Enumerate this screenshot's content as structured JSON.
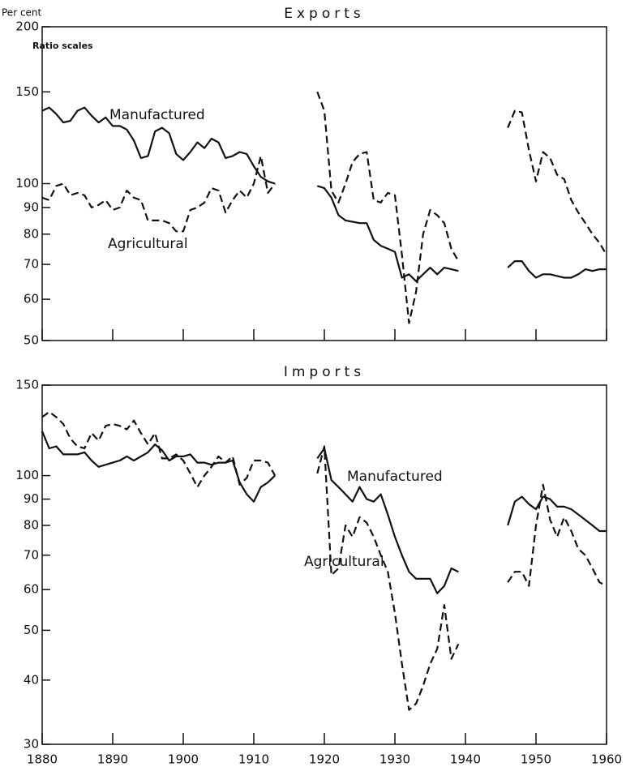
{
  "chart_data": [
    {
      "type": "line",
      "title": "Exports",
      "ylabel": "Per cent",
      "annotations": [
        "Ratio scales",
        "Manufactured",
        "Agricultural"
      ],
      "log": true,
      "xlim": [
        1880,
        1960
      ],
      "xticks": [
        1880,
        1890,
        1900,
        1910,
        1920,
        1930,
        1940,
        1950,
        1960
      ],
      "ylim": [
        50,
        200
      ],
      "yticks": [
        50,
        60,
        70,
        80,
        90,
        100,
        150,
        200
      ],
      "x": [
        1880,
        1881,
        1882,
        1883,
        1884,
        1885,
        1886,
        1887,
        1888,
        1889,
        1890,
        1891,
        1892,
        1893,
        1894,
        1895,
        1896,
        1897,
        1898,
        1899,
        1900,
        1901,
        1902,
        1903,
        1904,
        1905,
        1906,
        1907,
        1908,
        1909,
        1910,
        1911,
        1912,
        1913,
        1914,
        1915,
        1916,
        1917,
        1918,
        1919,
        1920,
        1921,
        1922,
        1923,
        1924,
        1925,
        1926,
        1927,
        1928,
        1929,
        1930,
        1931,
        1932,
        1933,
        1934,
        1935,
        1936,
        1937,
        1938,
        1939,
        1940,
        1941,
        1942,
        1943,
        1944,
        1945,
        1946,
        1947,
        1948,
        1949,
        1950,
        1951,
        1952,
        1953,
        1954,
        1955,
        1956,
        1957,
        1958,
        1959,
        1960
      ],
      "series": [
        {
          "name": "Manufactured",
          "color": "#111111",
          "dash": false,
          "values": [
            138,
            140,
            136,
            131,
            132,
            138,
            140,
            135,
            131,
            134,
            129,
            129,
            127,
            121,
            112,
            113,
            126,
            128,
            125,
            114,
            111,
            115,
            120,
            117,
            122,
            120,
            112,
            113,
            115,
            114,
            108,
            103,
            101,
            100,
            null,
            null,
            null,
            null,
            null,
            99,
            98,
            94,
            87,
            85,
            84.5,
            84,
            84,
            78,
            76,
            75,
            74,
            66,
            67,
            65,
            67,
            69,
            67,
            69,
            68.5,
            68,
            null,
            null,
            null,
            null,
            null,
            null,
            69,
            71,
            71,
            68,
            66,
            67,
            67,
            66.5,
            66,
            66,
            67,
            68.5,
            68,
            68.5,
            68.5
          ]
        },
        {
          "name": "Agricultural",
          "color": "#111111",
          "dash": true,
          "values": [
            94,
            93,
            99,
            100,
            95,
            96,
            95,
            90,
            91,
            93,
            89,
            90,
            97,
            94,
            93,
            85,
            85,
            85,
            84,
            81,
            81,
            89,
            90,
            92,
            98,
            97,
            88,
            93,
            97,
            94,
            100,
            113,
            96,
            100,
            null,
            null,
            null,
            null,
            null,
            150,
            138,
            97,
            92,
            100,
            110,
            114,
            115,
            93,
            92,
            96,
            95,
            73,
            54,
            62,
            80,
            89,
            87,
            84,
            75,
            71,
            null,
            null,
            null,
            null,
            null,
            null,
            128,
            138,
            137,
            116,
            101,
            115,
            112,
            104,
            102,
            93,
            88,
            84,
            80,
            77,
            73
          ]
        }
      ]
    },
    {
      "type": "line",
      "title": "Imports",
      "annotations": [
        "Manufactured",
        "Agricultural"
      ],
      "log": true,
      "xlim": [
        1880,
        1960
      ],
      "xticks": [
        1880,
        1890,
        1900,
        1910,
        1920,
        1930,
        1940,
        1950,
        1960
      ],
      "ylim": [
        30,
        150
      ],
      "yticks": [
        30,
        40,
        50,
        60,
        70,
        80,
        90,
        100,
        150
      ],
      "x": [
        1880,
        1881,
        1882,
        1883,
        1884,
        1885,
        1886,
        1887,
        1888,
        1889,
        1890,
        1891,
        1892,
        1893,
        1894,
        1895,
        1896,
        1897,
        1898,
        1899,
        1900,
        1901,
        1902,
        1903,
        1904,
        1905,
        1906,
        1907,
        1908,
        1909,
        1910,
        1911,
        1912,
        1913,
        1914,
        1915,
        1916,
        1917,
        1918,
        1919,
        1920,
        1921,
        1922,
        1923,
        1924,
        1925,
        1926,
        1927,
        1928,
        1929,
        1930,
        1931,
        1932,
        1933,
        1934,
        1935,
        1936,
        1937,
        1938,
        1939,
        1940,
        1941,
        1942,
        1943,
        1944,
        1945,
        1946,
        1947,
        1948,
        1949,
        1950,
        1951,
        1952,
        1953,
        1954,
        1955,
        1956,
        1957,
        1958,
        1959,
        1960
      ],
      "series": [
        {
          "name": "Manufactured",
          "color": "#111111",
          "dash": false,
          "values": [
            122,
            113,
            114,
            110,
            110,
            110,
            111,
            107,
            104,
            105,
            106,
            107,
            109,
            107,
            109,
            111,
            115,
            112,
            107,
            109,
            109,
            110,
            106,
            106,
            105,
            106,
            106,
            107,
            97,
            92,
            89,
            95,
            97,
            100,
            null,
            null,
            null,
            null,
            null,
            108,
            113,
            98,
            95,
            92,
            89,
            95,
            90,
            89,
            92,
            84,
            76,
            70,
            65,
            63,
            63,
            63,
            59,
            61,
            66,
            65,
            null,
            null,
            null,
            null,
            null,
            null,
            80,
            89,
            91,
            88,
            86,
            91,
            90,
            87,
            87,
            86,
            84,
            82,
            80,
            78,
            78
          ]
        },
        {
          "name": "Agricultural",
          "color": "#111111",
          "dash": true,
          "values": [
            130,
            133,
            130,
            126,
            118,
            114,
            113,
            121,
            117,
            125,
            126,
            125,
            123,
            128,
            121,
            115,
            121,
            108,
            108,
            110,
            107,
            101,
            95,
            100,
            104,
            109,
            106,
            109,
            96,
            99,
            107,
            107,
            106,
            100,
            null,
            null,
            null,
            null,
            null,
            101,
            114,
            64,
            66,
            80,
            76,
            83,
            81,
            76,
            70,
            65,
            54,
            43,
            35,
            36,
            39,
            43,
            46,
            56,
            44,
            47,
            null,
            null,
            null,
            null,
            null,
            null,
            62,
            65,
            65,
            61,
            80,
            96,
            82,
            76,
            83,
            78,
            72,
            70,
            66,
            62,
            61
          ]
        }
      ]
    }
  ]
}
